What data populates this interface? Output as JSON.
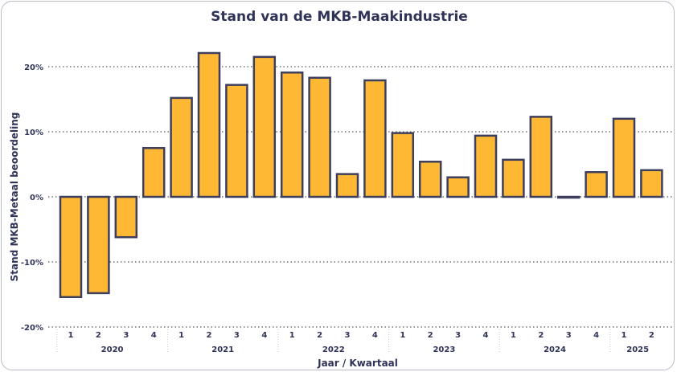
{
  "chart_data": {
    "type": "bar",
    "title": "Stand van de MKB-Maakindustrie",
    "xlabel": "Jaar / Kwartaal",
    "ylabel": "Stand MKB-Metaal beoordeling",
    "ylim": [
      -20,
      25
    ],
    "yticks": [
      -20,
      -10,
      0,
      10,
      20
    ],
    "ytick_labels": [
      "-20%",
      "-10%",
      "0%",
      "10%",
      "20%"
    ],
    "grid": true,
    "years": [
      {
        "label": "2020",
        "quarters": 4
      },
      {
        "label": "2021",
        "quarters": 4
      },
      {
        "label": "2022",
        "quarters": 4
      },
      {
        "label": "2023",
        "quarters": 4
      },
      {
        "label": "2024",
        "quarters": 4
      },
      {
        "label": "2025",
        "quarters": 2
      }
    ],
    "categories": [
      "1",
      "2",
      "3",
      "4",
      "1",
      "2",
      "3",
      "4",
      "1",
      "2",
      "3",
      "4",
      "1",
      "2",
      "3",
      "4",
      "1",
      "2",
      "3",
      "4",
      "1",
      "2"
    ],
    "values": [
      -15.4,
      -14.8,
      -6.2,
      7.5,
      15.2,
      22.1,
      17.2,
      21.5,
      19.1,
      18.3,
      3.5,
      17.9,
      9.8,
      5.4,
      3.0,
      9.4,
      5.7,
      12.3,
      -0.1,
      3.8,
      12.0,
      4.1
    ],
    "colors": {
      "bar": "#ffb833",
      "edge": "#3d3f5c",
      "text": "#2f3358"
    }
  }
}
